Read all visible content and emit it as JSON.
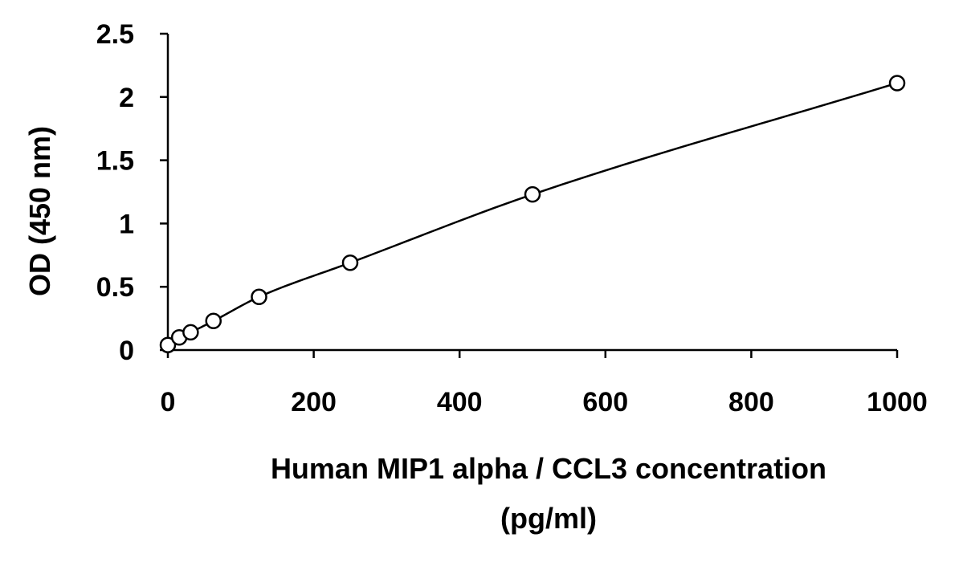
{
  "chart_data": {
    "type": "scatter",
    "title": "",
    "xlabel": "Human MIP1 alpha / CCL3 concentration (pg/ml)",
    "xlabel_lines": [
      "Human MIP1 alpha / CCL3 concentration",
      "(pg/ml)"
    ],
    "ylabel": "OD (450 nm)",
    "xlim": [
      0,
      1000
    ],
    "ylim": [
      0,
      2.5
    ],
    "xticks": [
      0,
      200,
      400,
      600,
      800,
      1000
    ],
    "xtick_labels": [
      "0",
      "200",
      "400",
      "600",
      "800",
      "1000"
    ],
    "yticks": [
      0,
      0.5,
      1,
      1.5,
      2,
      2.5
    ],
    "ytick_labels": [
      "0",
      "0.5",
      "1",
      "1.5",
      "2",
      "2.5"
    ],
    "grid": false,
    "legend": "none",
    "fit_line": true,
    "marker": "open-circle",
    "colors": {
      "series": "#000000",
      "background": "#ffffff"
    },
    "series": [
      {
        "x": [
          0,
          15.6,
          31.25,
          62.5,
          125,
          250,
          500,
          1000
        ],
        "y": [
          0.04,
          0.1,
          0.14,
          0.23,
          0.42,
          0.69,
          1.23,
          2.11
        ]
      }
    ]
  }
}
